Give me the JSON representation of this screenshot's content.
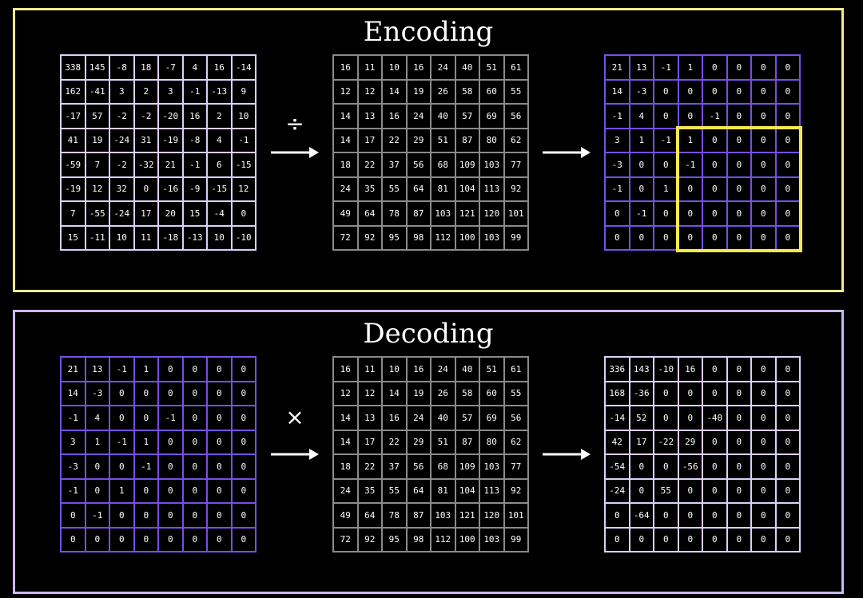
{
  "encoding": {
    "title": "Encoding",
    "operator": "÷",
    "input_matrix": [
      [
        "338",
        "145",
        "-8",
        "18",
        "-7",
        "4",
        "16",
        "-14"
      ],
      [
        "162",
        "-41",
        "3",
        "2",
        "3",
        "-1",
        "-13",
        "9"
      ],
      [
        "-17",
        "57",
        "-2",
        "-2",
        "-20",
        "16",
        "2",
        "10"
      ],
      [
        "41",
        "19",
        "-24",
        "31",
        "-19",
        "-8",
        "4",
        "-1"
      ],
      [
        "-59",
        "7",
        "-2",
        "-32",
        "21",
        "-1",
        "6",
        "-15"
      ],
      [
        "-19",
        "12",
        "32",
        "0",
        "-16",
        "-9",
        "-15",
        "12"
      ],
      [
        "7",
        "-55",
        "-24",
        "17",
        "20",
        "15",
        "-4",
        "0"
      ],
      [
        "15",
        "-11",
        "10",
        "11",
        "-18",
        "-13",
        "10",
        "-10"
      ]
    ],
    "quant_matrix": [
      [
        "16",
        "11",
        "10",
        "16",
        "24",
        "40",
        "51",
        "61"
      ],
      [
        "12",
        "12",
        "14",
        "19",
        "26",
        "58",
        "60",
        "55"
      ],
      [
        "14",
        "13",
        "16",
        "24",
        "40",
        "57",
        "69",
        "56"
      ],
      [
        "14",
        "17",
        "22",
        "29",
        "51",
        "87",
        "80",
        "62"
      ],
      [
        "18",
        "22",
        "37",
        "56",
        "68",
        "109",
        "103",
        "77"
      ],
      [
        "24",
        "35",
        "55",
        "64",
        "81",
        "104",
        "113",
        "92"
      ],
      [
        "49",
        "64",
        "78",
        "87",
        "103",
        "121",
        "120",
        "101"
      ],
      [
        "72",
        "92",
        "95",
        "98",
        "112",
        "100",
        "103",
        "99"
      ]
    ],
    "output_matrix": [
      [
        "21",
        "13",
        "-1",
        "1",
        "0",
        "0",
        "0",
        "0"
      ],
      [
        "14",
        "-3",
        "0",
        "0",
        "0",
        "0",
        "0",
        "0"
      ],
      [
        "-1",
        "4",
        "0",
        "0",
        "-1",
        "0",
        "0",
        "0"
      ],
      [
        "3",
        "1",
        "-1",
        "1",
        "0",
        "0",
        "0",
        "0"
      ],
      [
        "-3",
        "0",
        "0",
        "-1",
        "0",
        "0",
        "0",
        "0"
      ],
      [
        "-1",
        "0",
        "1",
        "0",
        "0",
        "0",
        "0",
        "0"
      ],
      [
        "0",
        "-1",
        "0",
        "0",
        "0",
        "0",
        "0",
        "0"
      ],
      [
        "0",
        "0",
        "0",
        "0",
        "0",
        "0",
        "0",
        "0"
      ]
    ],
    "highlight_color": "#f3ea4c"
  },
  "decoding": {
    "title": "Decoding",
    "operator": "×",
    "input_matrix": [
      [
        "21",
        "13",
        "-1",
        "1",
        "0",
        "0",
        "0",
        "0"
      ],
      [
        "14",
        "-3",
        "0",
        "0",
        "0",
        "0",
        "0",
        "0"
      ],
      [
        "-1",
        "4",
        "0",
        "0",
        "-1",
        "0",
        "0",
        "0"
      ],
      [
        "3",
        "1",
        "-1",
        "1",
        "0",
        "0",
        "0",
        "0"
      ],
      [
        "-3",
        "0",
        "0",
        "-1",
        "0",
        "0",
        "0",
        "0"
      ],
      [
        "-1",
        "0",
        "1",
        "0",
        "0",
        "0",
        "0",
        "0"
      ],
      [
        "0",
        "-1",
        "0",
        "0",
        "0",
        "0",
        "0",
        "0"
      ],
      [
        "0",
        "0",
        "0",
        "0",
        "0",
        "0",
        "0",
        "0"
      ]
    ],
    "quant_matrix": [
      [
        "16",
        "11",
        "10",
        "16",
        "24",
        "40",
        "51",
        "61"
      ],
      [
        "12",
        "12",
        "14",
        "19",
        "26",
        "58",
        "60",
        "55"
      ],
      [
        "14",
        "13",
        "16",
        "24",
        "40",
        "57",
        "69",
        "56"
      ],
      [
        "14",
        "17",
        "22",
        "29",
        "51",
        "87",
        "80",
        "62"
      ],
      [
        "18",
        "22",
        "37",
        "56",
        "68",
        "109",
        "103",
        "77"
      ],
      [
        "24",
        "35",
        "55",
        "64",
        "81",
        "104",
        "113",
        "92"
      ],
      [
        "49",
        "64",
        "78",
        "87",
        "103",
        "121",
        "120",
        "101"
      ],
      [
        "72",
        "92",
        "95",
        "98",
        "112",
        "100",
        "103",
        "99"
      ]
    ],
    "output_matrix": [
      [
        "336",
        "143",
        "-10",
        "16",
        "0",
        "0",
        "0",
        "0"
      ],
      [
        "168",
        "-36",
        "0",
        "0",
        "0",
        "0",
        "0",
        "0"
      ],
      [
        "-14",
        "52",
        "0",
        "0",
        "-40",
        "0",
        "0",
        "0"
      ],
      [
        "42",
        "17",
        "-22",
        "29",
        "0",
        "0",
        "0",
        "0"
      ],
      [
        "-54",
        "0",
        "0",
        "-56",
        "0",
        "0",
        "0",
        "0"
      ],
      [
        "-24",
        "0",
        "55",
        "0",
        "0",
        "0",
        "0",
        "0"
      ],
      [
        "0",
        "-64",
        "0",
        "0",
        "0",
        "0",
        "0",
        "0"
      ],
      [
        "0",
        "0",
        "0",
        "0",
        "0",
        "0",
        "0",
        "0"
      ]
    ]
  },
  "colors": {
    "encoding_border": "#f5ec8a",
    "decoding_border": "#cbb8f3",
    "lavender_grid": "#dccff8",
    "gray_grid": "#8a8a8a",
    "purple_grid": "#7550e6"
  }
}
